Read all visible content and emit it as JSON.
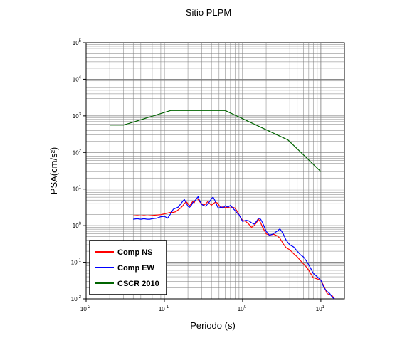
{
  "chart_data": {
    "type": "line",
    "title": "Sitio PLPM",
    "xlabel": "Periodo (s)",
    "ylabel": "PSA(cm/s²)",
    "x_scale": "log",
    "y_scale": "log",
    "xlim": [
      0.01,
      20
    ],
    "ylim": [
      0.01,
      100000
    ],
    "grid": true,
    "legend_position": "bottom-left",
    "x_ticks": [
      {
        "base": "10",
        "exp": "-2",
        "value": 0.01
      },
      {
        "base": "10",
        "exp": "-1",
        "value": 0.1
      },
      {
        "base": "10",
        "exp": "0",
        "value": 1
      },
      {
        "base": "10",
        "exp": "1",
        "value": 10
      }
    ],
    "y_ticks": [
      {
        "base": "10",
        "exp": "-2",
        "value": 0.01
      },
      {
        "base": "10",
        "exp": "-1",
        "value": 0.1
      },
      {
        "base": "10",
        "exp": "0",
        "value": 1
      },
      {
        "base": "10",
        "exp": "1",
        "value": 10
      },
      {
        "base": "10",
        "exp": "2",
        "value": 100
      },
      {
        "base": "10",
        "exp": "3",
        "value": 1000
      },
      {
        "base": "10",
        "exp": "4",
        "value": 10000
      },
      {
        "base": "10",
        "exp": "5",
        "value": 100000
      }
    ],
    "series": [
      {
        "name": "Comp NS",
        "color": "#ff0000",
        "points": [
          [
            0.04,
            1.85
          ],
          [
            0.045,
            1.9
          ],
          [
            0.05,
            1.85
          ],
          [
            0.055,
            1.9
          ],
          [
            0.06,
            1.85
          ],
          [
            0.07,
            1.9
          ],
          [
            0.08,
            1.95
          ],
          [
            0.09,
            2.0
          ],
          [
            0.1,
            2.1
          ],
          [
            0.11,
            2.2
          ],
          [
            0.12,
            2.3
          ],
          [
            0.13,
            2.3
          ],
          [
            0.14,
            2.4
          ],
          [
            0.15,
            2.7
          ],
          [
            0.16,
            3.0
          ],
          [
            0.17,
            3.4
          ],
          [
            0.18,
            4.0
          ],
          [
            0.19,
            4.5
          ],
          [
            0.2,
            4.0
          ],
          [
            0.21,
            3.5
          ],
          [
            0.22,
            3.9
          ],
          [
            0.23,
            4.6
          ],
          [
            0.24,
            4.2
          ],
          [
            0.25,
            5.0
          ],
          [
            0.26,
            5.5
          ],
          [
            0.27,
            5.2
          ],
          [
            0.28,
            4.6
          ],
          [
            0.3,
            4.0
          ],
          [
            0.32,
            3.6
          ],
          [
            0.34,
            4.0
          ],
          [
            0.36,
            4.6
          ],
          [
            0.38,
            4.0
          ],
          [
            0.4,
            3.6
          ],
          [
            0.42,
            4.0
          ],
          [
            0.45,
            4.4
          ],
          [
            0.48,
            4.1
          ],
          [
            0.5,
            3.6
          ],
          [
            0.53,
            3.0
          ],
          [
            0.56,
            3.3
          ],
          [
            0.6,
            3.1
          ],
          [
            0.65,
            3.2
          ],
          [
            0.7,
            3.0
          ],
          [
            0.75,
            3.2
          ],
          [
            0.8,
            3.0
          ],
          [
            0.85,
            2.5
          ],
          [
            0.9,
            2.0
          ],
          [
            0.95,
            1.6
          ],
          [
            1.0,
            1.4
          ],
          [
            1.1,
            1.3
          ],
          [
            1.2,
            1.1
          ],
          [
            1.3,
            0.9
          ],
          [
            1.4,
            1.0
          ],
          [
            1.5,
            1.2
          ],
          [
            1.6,
            1.5
          ],
          [
            1.7,
            1.2
          ],
          [
            1.8,
            0.9
          ],
          [
            2.0,
            0.6
          ],
          [
            2.2,
            0.55
          ],
          [
            2.5,
            0.58
          ],
          [
            2.8,
            0.52
          ],
          [
            3.0,
            0.45
          ],
          [
            3.3,
            0.32
          ],
          [
            3.6,
            0.25
          ],
          [
            4.0,
            0.22
          ],
          [
            4.5,
            0.17
          ],
          [
            5.0,
            0.14
          ],
          [
            5.5,
            0.11
          ],
          [
            6.0,
            0.09
          ],
          [
            6.5,
            0.075
          ],
          [
            7.0,
            0.06
          ],
          [
            7.5,
            0.047
          ],
          [
            8.0,
            0.038
          ],
          [
            9.0,
            0.035
          ],
          [
            10.0,
            0.032
          ],
          [
            11.0,
            0.022
          ],
          [
            12.0,
            0.014
          ],
          [
            13.0,
            0.013
          ],
          [
            14.0,
            0.012
          ],
          [
            15.0,
            0.01
          ]
        ]
      },
      {
        "name": "Comp EW",
        "color": "#0000ff",
        "points": [
          [
            0.04,
            1.5
          ],
          [
            0.045,
            1.55
          ],
          [
            0.05,
            1.5
          ],
          [
            0.055,
            1.55
          ],
          [
            0.06,
            1.5
          ],
          [
            0.065,
            1.5
          ],
          [
            0.07,
            1.55
          ],
          [
            0.08,
            1.6
          ],
          [
            0.09,
            1.75
          ],
          [
            0.1,
            1.8
          ],
          [
            0.11,
            1.6
          ],
          [
            0.12,
            2.1
          ],
          [
            0.13,
            2.8
          ],
          [
            0.14,
            3.0
          ],
          [
            0.15,
            3.2
          ],
          [
            0.16,
            3.8
          ],
          [
            0.17,
            4.5
          ],
          [
            0.18,
            5.2
          ],
          [
            0.19,
            4.2
          ],
          [
            0.2,
            3.4
          ],
          [
            0.21,
            3.2
          ],
          [
            0.22,
            3.5
          ],
          [
            0.23,
            4.2
          ],
          [
            0.24,
            4.6
          ],
          [
            0.25,
            5.0
          ],
          [
            0.26,
            5.6
          ],
          [
            0.27,
            6.2
          ],
          [
            0.28,
            5.0
          ],
          [
            0.3,
            3.8
          ],
          [
            0.32,
            3.5
          ],
          [
            0.34,
            3.4
          ],
          [
            0.36,
            4.0
          ],
          [
            0.38,
            4.6
          ],
          [
            0.4,
            5.5
          ],
          [
            0.42,
            6.0
          ],
          [
            0.44,
            5.0
          ],
          [
            0.46,
            4.0
          ],
          [
            0.48,
            3.2
          ],
          [
            0.5,
            3.0
          ],
          [
            0.53,
            3.3
          ],
          [
            0.56,
            3.0
          ],
          [
            0.6,
            3.5
          ],
          [
            0.65,
            3.2
          ],
          [
            0.7,
            3.6
          ],
          [
            0.75,
            3.0
          ],
          [
            0.8,
            2.6
          ],
          [
            0.85,
            2.2
          ],
          [
            0.9,
            2.0
          ],
          [
            0.95,
            1.6
          ],
          [
            1.0,
            1.3
          ],
          [
            1.1,
            1.4
          ],
          [
            1.2,
            1.35
          ],
          [
            1.3,
            1.2
          ],
          [
            1.4,
            1.1
          ],
          [
            1.5,
            1.3
          ],
          [
            1.6,
            1.6
          ],
          [
            1.7,
            1.5
          ],
          [
            1.8,
            1.2
          ],
          [
            2.0,
            0.7
          ],
          [
            2.2,
            0.55
          ],
          [
            2.4,
            0.58
          ],
          [
            2.6,
            0.65
          ],
          [
            2.8,
            0.72
          ],
          [
            3.0,
            0.82
          ],
          [
            3.3,
            0.6
          ],
          [
            3.6,
            0.4
          ],
          [
            4.0,
            0.3
          ],
          [
            4.5,
            0.26
          ],
          [
            5.0,
            0.2
          ],
          [
            5.5,
            0.16
          ],
          [
            6.0,
            0.14
          ],
          [
            6.5,
            0.11
          ],
          [
            7.0,
            0.085
          ],
          [
            7.5,
            0.065
          ],
          [
            8.0,
            0.05
          ],
          [
            9.0,
            0.04
          ],
          [
            10.0,
            0.032
          ],
          [
            11.0,
            0.02
          ],
          [
            12.0,
            0.016
          ],
          [
            13.0,
            0.014
          ],
          [
            14.0,
            0.011
          ],
          [
            15.0,
            0.01
          ]
        ]
      },
      {
        "name": "CSCR 2010",
        "color": "#006400",
        "points": [
          [
            0.02,
            560
          ],
          [
            0.03,
            560
          ],
          [
            0.12,
            1400
          ],
          [
            0.6,
            1400
          ],
          [
            3.8,
            220
          ],
          [
            10.0,
            30
          ]
        ]
      }
    ]
  }
}
